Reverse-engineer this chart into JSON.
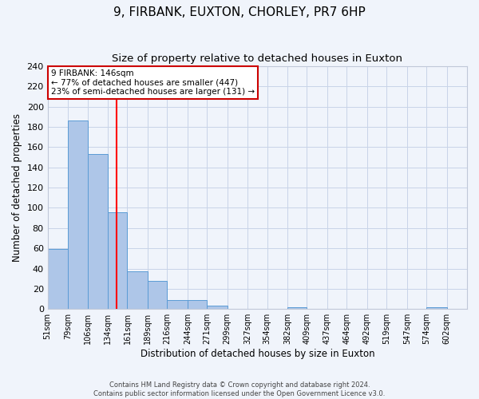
{
  "title": "9, FIRBANK, EUXTON, CHORLEY, PR7 6HP",
  "subtitle": "Size of property relative to detached houses in Euxton",
  "xlabel": "Distribution of detached houses by size in Euxton",
  "ylabel": "Number of detached properties",
  "bar_labels": [
    "51sqm",
    "79sqm",
    "106sqm",
    "134sqm",
    "161sqm",
    "189sqm",
    "216sqm",
    "244sqm",
    "271sqm",
    "299sqm",
    "327sqm",
    "354sqm",
    "382sqm",
    "409sqm",
    "437sqm",
    "464sqm",
    "492sqm",
    "519sqm",
    "547sqm",
    "574sqm",
    "602sqm"
  ],
  "bar_values": [
    59,
    186,
    153,
    96,
    37,
    28,
    9,
    9,
    3,
    0,
    0,
    0,
    2,
    0,
    0,
    0,
    0,
    0,
    0,
    2,
    0
  ],
  "bin_edges": [
    51,
    79,
    106,
    134,
    161,
    189,
    216,
    244,
    271,
    299,
    327,
    354,
    382,
    409,
    437,
    464,
    492,
    519,
    547,
    574,
    602
  ],
  "bar_color": "#aec6e8",
  "bar_edge_color": "#5b9bd5",
  "vline_x": 146,
  "vline_color": "red",
  "ylim": [
    0,
    240
  ],
  "yticks": [
    0,
    20,
    40,
    60,
    80,
    100,
    120,
    140,
    160,
    180,
    200,
    220,
    240
  ],
  "annotation_title": "9 FIRBANK: 146sqm",
  "annotation_line1": "← 77% of detached houses are smaller (447)",
  "annotation_line2": "23% of semi-detached houses are larger (131) →",
  "annotation_box_color": "#ffffff",
  "annotation_box_edge": "#cc0000",
  "footer1": "Contains HM Land Registry data © Crown copyright and database right 2024.",
  "footer2": "Contains public sector information licensed under the Open Government Licence v3.0.",
  "title_fontsize": 11,
  "subtitle_fontsize": 9.5,
  "grid_color": "#c8d4e8",
  "background_color": "#f0f4fb"
}
